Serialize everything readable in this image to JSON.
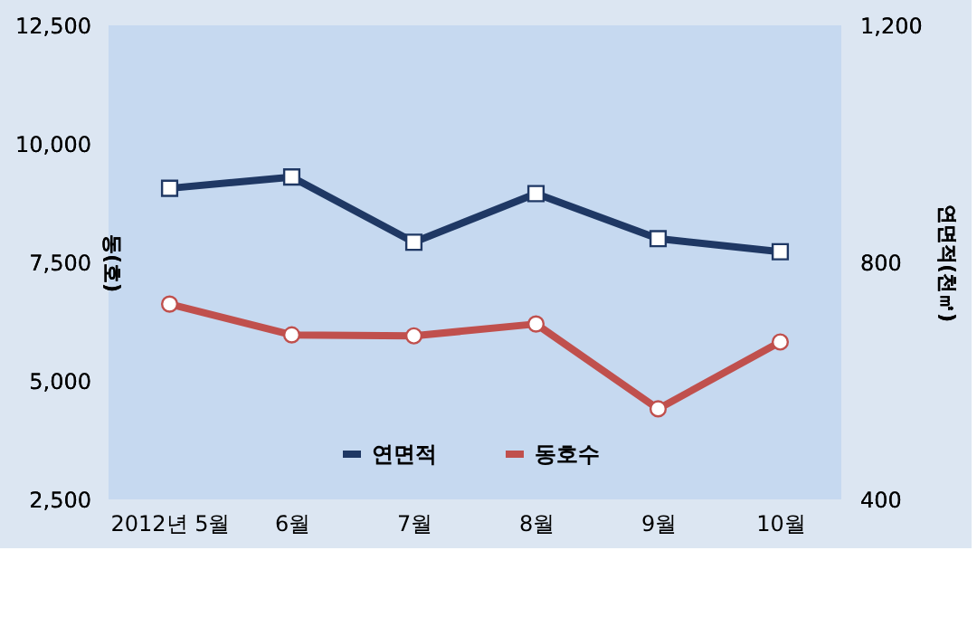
{
  "chart_data": {
    "type": "line",
    "categories": [
      "2012년 5월",
      "6월",
      "7월",
      "8월",
      "9월",
      "10월"
    ],
    "ylabel": "동(호)",
    "y2label": "연면적(천㎡)",
    "ylim": [
      2500,
      12500
    ],
    "yticks": [
      {
        "value": 2500,
        "label": "2,500"
      },
      {
        "value": 5000,
        "label": "5,000"
      },
      {
        "value": 7500,
        "label": "7,500"
      },
      {
        "value": 10000,
        "label": "10,000"
      },
      {
        "value": 12500,
        "label": "12,500"
      }
    ],
    "y2lim": [
      400,
      1200
    ],
    "y2ticks": [
      400,
      800,
      {
        "value": 1200,
        "label": "1,200"
      }
    ],
    "series": [
      {
        "name": "연면적",
        "color": "#1f3864",
        "axis": "y2",
        "marker": "square",
        "values": [
          925,
          944,
          834,
          916,
          840,
          818
        ]
      },
      {
        "name": "동호수",
        "color": "#c0504d",
        "axis": "y",
        "marker": "circle",
        "values": [
          6620,
          5970,
          5950,
          6200,
          4410,
          5820
        ]
      }
    ],
    "grid": false,
    "legend": "bottom",
    "line_style": "solid"
  }
}
